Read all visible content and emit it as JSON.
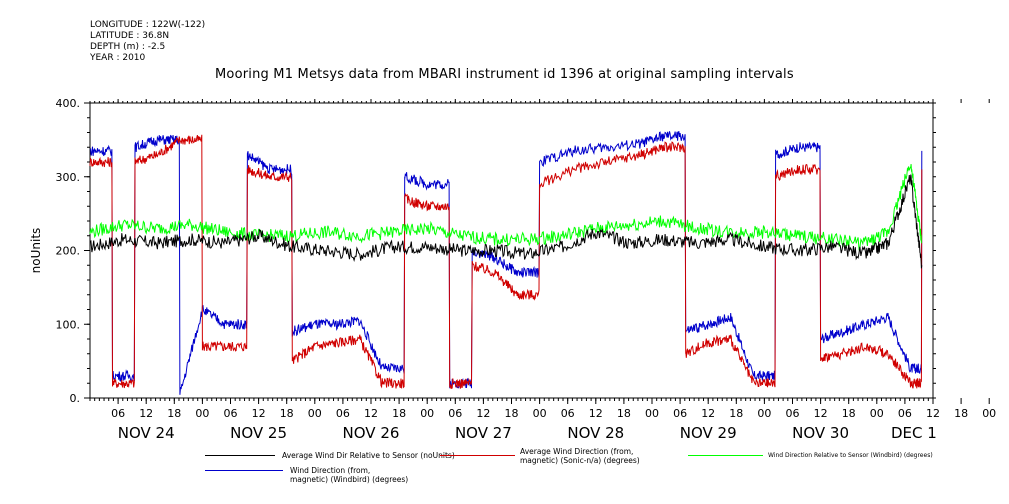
{
  "meta": {
    "longitude": "LONGITUDE : 122W(-122)",
    "latitude": "LATITUDE : 36.8N",
    "depth": "DEPTH (m) : -2.5",
    "year": "YEAR : 2010"
  },
  "chart_data": {
    "type": "line",
    "title": "Mooring M1 Metsys data from MBARI instrument id 1396 at original sampling intervals",
    "ylabel": "noUnits",
    "xlabel": "",
    "ylim": [
      0,
      400
    ],
    "yticks": [
      "0.",
      "100.",
      "200.",
      "300.",
      "400."
    ],
    "xlim": [
      0.0,
      7.5
    ],
    "x_unit": "days from NOV 24 00:00",
    "hour_ticks": [
      "06",
      "12",
      "18",
      "00",
      "06",
      "12",
      "18",
      "00",
      "06",
      "12",
      "18",
      "00",
      "06",
      "12",
      "18",
      "00",
      "06",
      "12",
      "18",
      "00",
      "06",
      "12",
      "18",
      "00",
      "06",
      "12",
      "18",
      "00",
      "06",
      "12",
      "18",
      "00",
      "06"
    ],
    "day_labels": [
      "NOV 24",
      "NOV 25",
      "NOV 26",
      "NOV 27",
      "NOV 28",
      "NOV 29",
      "NOV 30",
      "DEC 1"
    ],
    "grid": false,
    "legend_placement": "bottom",
    "series": [
      {
        "name": "Average Wind Dir Relative to Sensor (noUnits)",
        "color": "#000000",
        "x": [
          0.0,
          0.3,
          0.6,
          0.9,
          1.2,
          1.5,
          1.8,
          2.1,
          2.4,
          2.7,
          3.0,
          3.3,
          3.6,
          3.9,
          4.2,
          4.5,
          4.8,
          5.1,
          5.4,
          5.7,
          6.0,
          6.3,
          6.6,
          6.9,
          7.1,
          7.3,
          7.4
        ],
        "y": [
          205,
          215,
          210,
          215,
          210,
          220,
          205,
          200,
          195,
          205,
          205,
          200,
          200,
          195,
          205,
          225,
          210,
          215,
          210,
          215,
          205,
          200,
          205,
          195,
          210,
          300,
          180
        ]
      },
      {
        "name": "Average Wind Direction (from, magnetic) (Sonic-n/a) (degrees)",
        "color": "#d00000",
        "x": [
          0.0,
          0.2,
          0.4,
          0.6,
          0.8,
          1.0,
          1.2,
          1.4,
          1.6,
          1.8,
          2.0,
          2.2,
          2.4,
          2.6,
          2.8,
          3.0,
          3.2,
          3.4,
          3.6,
          3.8,
          4.0,
          4.3,
          4.6,
          4.9,
          5.1,
          5.3,
          5.5,
          5.7,
          5.9,
          6.1,
          6.3,
          6.5,
          6.7,
          6.9,
          7.1,
          7.3,
          7.4
        ],
        "y": [
          320,
          20,
          320,
          330,
          350,
          70,
          70,
          310,
          300,
          50,
          70,
          75,
          80,
          20,
          270,
          260,
          20,
          180,
          170,
          140,
          290,
          310,
          320,
          330,
          340,
          60,
          75,
          80,
          20,
          300,
          310,
          55,
          60,
          70,
          60,
          20,
          310
        ]
      },
      {
        "name": "Wind Direction Relative to Sensor (Windbird) (degrees)",
        "color": "#00ff00",
        "x": [
          0.0,
          0.3,
          0.6,
          0.9,
          1.2,
          1.5,
          1.8,
          2.1,
          2.4,
          2.7,
          3.0,
          3.3,
          3.6,
          3.9,
          4.2,
          4.5,
          4.8,
          5.1,
          5.4,
          5.7,
          6.0,
          6.3,
          6.6,
          6.9,
          7.1,
          7.3,
          7.4
        ],
        "y": [
          225,
          235,
          230,
          235,
          225,
          220,
          220,
          225,
          220,
          225,
          230,
          220,
          215,
          215,
          220,
          230,
          235,
          240,
          230,
          225,
          225,
          220,
          215,
          210,
          225,
          320,
          210
        ]
      },
      {
        "name": "Wind Direction (from, magnetic) (Windbird) (degrees)",
        "color": "#0000cc",
        "x": [
          0.0,
          0.2,
          0.4,
          0.6,
          0.8,
          1.0,
          1.2,
          1.4,
          1.6,
          1.8,
          2.0,
          2.2,
          2.4,
          2.6,
          2.8,
          3.0,
          3.2,
          3.4,
          3.6,
          3.8,
          4.0,
          4.3,
          4.6,
          4.9,
          5.1,
          5.3,
          5.5,
          5.7,
          5.9,
          6.1,
          6.3,
          6.5,
          6.7,
          6.9,
          7.1,
          7.3,
          7.4
        ],
        "y": [
          335,
          30,
          340,
          350,
          5,
          120,
          100,
          330,
          310,
          90,
          100,
          100,
          105,
          40,
          300,
          290,
          20,
          200,
          190,
          170,
          320,
          335,
          340,
          345,
          355,
          90,
          100,
          110,
          30,
          330,
          340,
          80,
          90,
          100,
          110,
          40,
          335
        ]
      }
    ]
  },
  "legend": [
    {
      "label": "Average Wind Dir Relative to Sensor (noUnits)"
    },
    {
      "label": "Average Wind Direction (from,\n magnetic) (Sonic-n/a) (degrees)"
    },
    {
      "label": "Wind Direction Relative to Sensor (Windbird) (degrees)"
    },
    {
      "label": "Wind Direction (from,\n magnetic) (Windbird) (degrees)"
    }
  ]
}
